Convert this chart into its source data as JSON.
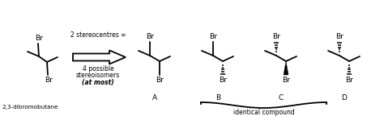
{
  "bg_color": "#ffffff",
  "line_color": "#000000",
  "text_color": "#000000",
  "arrow_text_line1": "2 stereocentres =",
  "arrow_text_line2": "4 possible",
  "arrow_text_line3": "stereoisomers",
  "arrow_text_line4": "(at most)",
  "labels_ABCD": [
    "A",
    "B",
    "C",
    "D"
  ],
  "identical_text": "identical compound",
  "label_23dbb": "2,3-dibromobutane",
  "figw": 4.74,
  "figh": 1.44,
  "dpi": 100
}
